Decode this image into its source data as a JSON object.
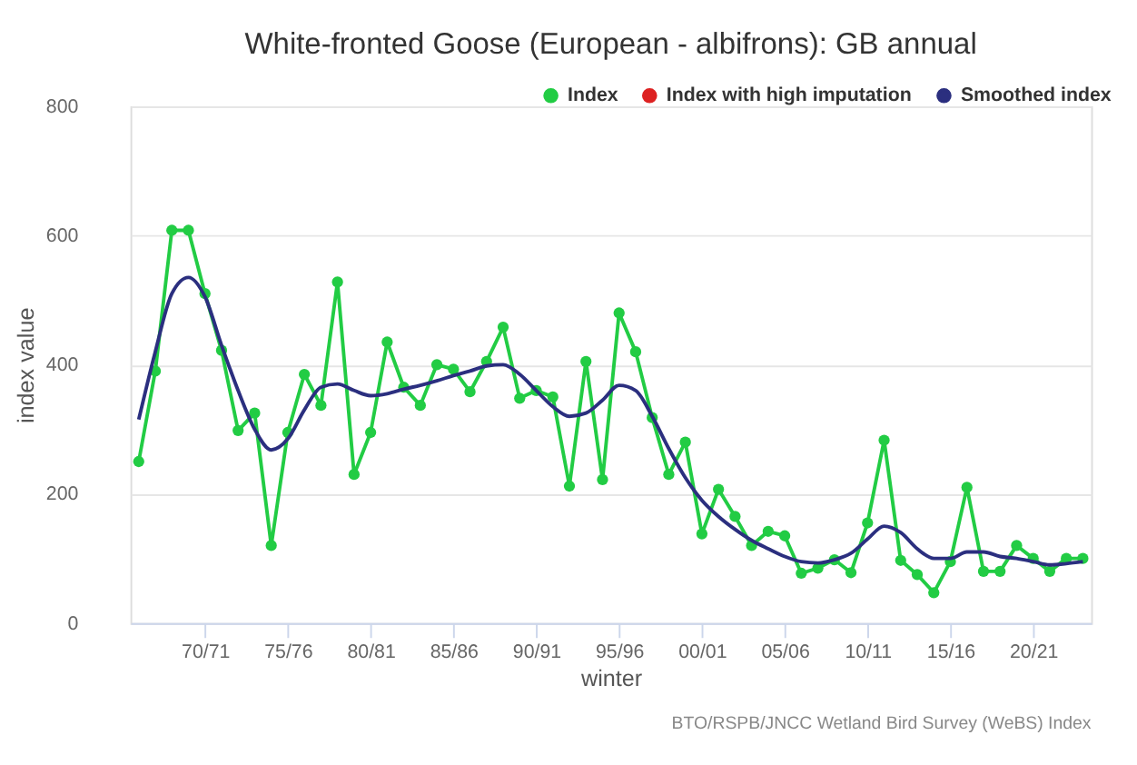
{
  "chart_data": {
    "type": "line",
    "title": "White-fronted Goose (European - albifrons): GB annual",
    "xlabel": "winter",
    "ylabel": "index value",
    "annotations": [
      "BTO/RSPB/JNCC Wetland Bird Survey (WeBS) Index"
    ],
    "categories": [
      null,
      null,
      null,
      null,
      "70/71",
      null,
      null,
      null,
      null,
      "75/76",
      null,
      null,
      null,
      null,
      "80/81",
      null,
      null,
      null,
      null,
      "85/86",
      null,
      null,
      null,
      null,
      "90/91",
      null,
      null,
      null,
      null,
      "95/96",
      null,
      null,
      null,
      null,
      "00/01",
      null,
      null,
      null,
      null,
      "05/06",
      null,
      null,
      null,
      null,
      "10/11",
      null,
      null,
      null,
      null,
      "15/16",
      null,
      null,
      null,
      null,
      "20/21",
      null,
      null,
      null
    ],
    "series": [
      {
        "name": "Index",
        "color": "#22cc44",
        "marker": "circle",
        "values": [
          250,
          390,
          608,
          608,
          510,
          422,
          298,
          325,
          120,
          295,
          385,
          337,
          528,
          230,
          295,
          435,
          365,
          337,
          400,
          393,
          358,
          405,
          458,
          348,
          360,
          350,
          212,
          405,
          222,
          480,
          420,
          318,
          230,
          280,
          138,
          207,
          165,
          120,
          142,
          135,
          77,
          85,
          98,
          78,
          155,
          283,
          97,
          75,
          47,
          95,
          210,
          80,
          80,
          120,
          100,
          80,
          100,
          100
        ]
      },
      {
        "name": "Index with high imputation",
        "color": "#dd2222",
        "marker": "circle",
        "values": [
          null,
          null,
          null,
          null,
          null,
          null,
          null,
          null,
          null,
          null,
          null,
          null,
          null,
          null,
          null,
          null,
          null,
          null,
          null,
          null,
          null,
          null,
          null,
          null,
          null,
          null,
          null,
          null,
          null,
          null,
          null,
          null,
          null,
          null,
          null,
          null,
          null,
          null,
          null,
          null,
          null,
          null,
          null,
          null,
          null,
          null,
          null,
          null,
          null,
          null,
          null,
          null,
          null,
          null,
          null,
          null,
          null,
          null
        ]
      },
      {
        "name": "Smoothed index",
        "color": "#2b2f7f",
        "marker": "none",
        "values": [
          315,
          420,
          510,
          535,
          505,
          430,
          360,
          300,
          268,
          285,
          330,
          365,
          370,
          360,
          352,
          355,
          362,
          368,
          375,
          383,
          390,
          398,
          400,
          385,
          360,
          335,
          320,
          325,
          345,
          368,
          360,
          320,
          270,
          225,
          190,
          165,
          145,
          128,
          115,
          103,
          95,
          93,
          98,
          108,
          130,
          150,
          140,
          115,
          100,
          100,
          110,
          110,
          103,
          100,
          95,
          90,
          92,
          95
        ]
      }
    ],
    "ylim": [
      0,
      800
    ],
    "yticks": [
      0,
      200,
      400,
      600,
      800
    ],
    "grid": "y",
    "legend": "top right",
    "line_style": "solid"
  }
}
